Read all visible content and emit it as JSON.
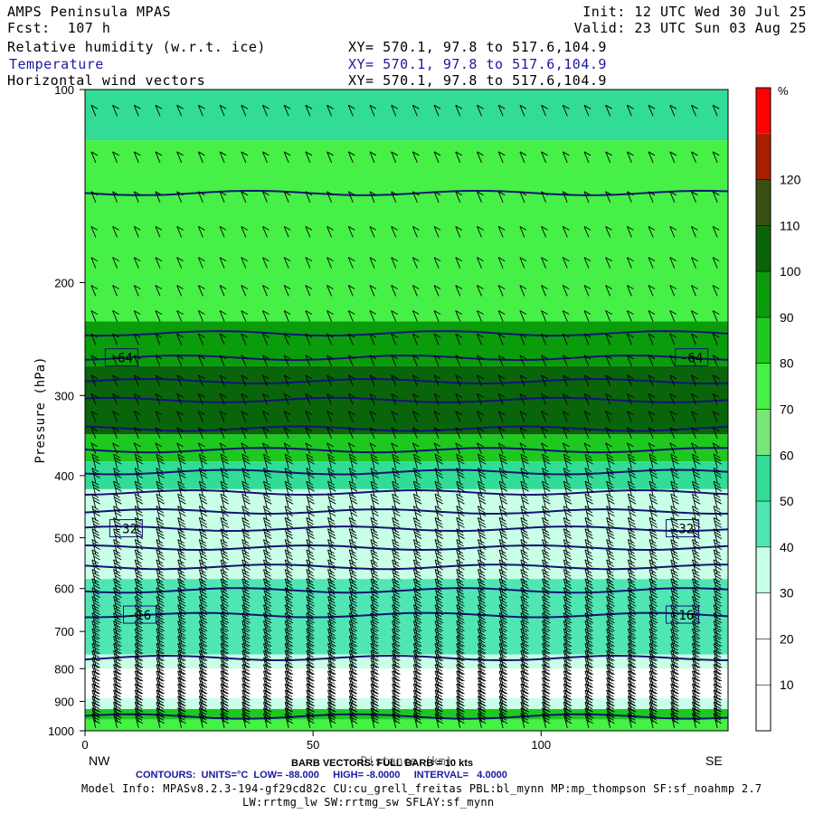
{
  "header": {
    "title": "AMPS Peninsula MPAS",
    "fcst": "Fcst:  107 h",
    "init": "Init: 12 UTC Wed 30 Jul 25",
    "valid": "Valid: 23 UTC Sun 03 Aug 25",
    "fields": [
      {
        "name": "Relative humidity (w.r.t. ice)",
        "xy": "XY= 570.1, 97.8 to 517.6,104.9"
      },
      {
        "name": "Temperature",
        "xy": "XY= 570.1, 97.8 to 517.6,104.9"
      },
      {
        "name": "Horizontal wind vectors",
        "xy": "XY= 570.1, 97.8 to 517.6,104.9"
      }
    ]
  },
  "chart_data": {
    "type": "heatmap",
    "ylabel": "Pressure (hPa)",
    "xlabel": "Distance (km)",
    "x_ticks": [
      0,
      50,
      100
    ],
    "x_range": [
      0,
      141
    ],
    "y_ticks": [
      100,
      200,
      300,
      400,
      500,
      600,
      700,
      800,
      900,
      1000
    ],
    "y_range": [
      100,
      1000
    ],
    "y_scale": "log-pressure",
    "endpoints": {
      "left": "NW",
      "right": "SE"
    },
    "colorbar": {
      "unit": "%",
      "levels": [
        0,
        10,
        20,
        30,
        40,
        50,
        60,
        70,
        80,
        90,
        100,
        110,
        120,
        130
      ],
      "tick_labels": [
        "10",
        "20",
        "30",
        "40",
        "50",
        "60",
        "70",
        "80",
        "90",
        "100",
        "110",
        "120"
      ],
      "colors": [
        "#ffffff",
        "#ffffff",
        "#ffffff",
        "#c8ffe6",
        "#50e6b4",
        "#32dc96",
        "#7ae67a",
        "#46f046",
        "#1ec81e",
        "#0a9c0a",
        "#0a640a",
        "#375014",
        "#aa1e00",
        "#ff0000"
      ]
    },
    "rh_layers": [
      {
        "p_top": 100,
        "p_bottom": 120,
        "rh": 55
      },
      {
        "p_top": 120,
        "p_bottom": 230,
        "rh": 75
      },
      {
        "p_top": 230,
        "p_bottom": 270,
        "rh": 92
      },
      {
        "p_top": 270,
        "p_bottom": 345,
        "rh": 108
      },
      {
        "p_top": 345,
        "p_bottom": 380,
        "rh": 88
      },
      {
        "p_top": 380,
        "p_bottom": 420,
        "rh": 52
      },
      {
        "p_top": 420,
        "p_bottom": 580,
        "rh": 38
      },
      {
        "p_top": 580,
        "p_bottom": 760,
        "rh": 45
      },
      {
        "p_top": 760,
        "p_bottom": 800,
        "rh": 35
      },
      {
        "p_top": 800,
        "p_bottom": 890,
        "rh": 18
      },
      {
        "p_top": 890,
        "p_bottom": 925,
        "rh": 35
      },
      {
        "p_top": 925,
        "p_bottom": 960,
        "rh": 88
      },
      {
        "p_top": 960,
        "p_bottom": 1000,
        "rh": 75
      }
    ],
    "temperature_contours": {
      "units": "°C",
      "low": -88.0,
      "high": -8.0,
      "interval": 4.0,
      "lines": [
        {
          "value": -68,
          "pressure": 145
        },
        {
          "value": -64,
          "pressure": 240
        },
        {
          "value": -64,
          "pressure": 262
        },
        {
          "value": -60,
          "pressure": 285
        },
        {
          "value": -56,
          "pressure": 305
        },
        {
          "value": -52,
          "pressure": 338
        },
        {
          "value": -48,
          "pressure": 365
        },
        {
          "value": -44,
          "pressure": 395
        },
        {
          "value": -40,
          "pressure": 425
        },
        {
          "value": -36,
          "pressure": 455
        },
        {
          "value": -32,
          "pressure": 484
        },
        {
          "value": -28,
          "pressure": 518
        },
        {
          "value": -24,
          "pressure": 555
        },
        {
          "value": -20,
          "pressure": 604
        },
        {
          "value": -16,
          "pressure": 660
        },
        {
          "value": -12,
          "pressure": 770
        },
        {
          "value": -8,
          "pressure": 950
        }
      ],
      "labels": [
        {
          "text": "-64",
          "x": 8,
          "pressure": 262
        },
        {
          "text": "-64",
          "x": 133,
          "pressure": 262
        },
        {
          "text": "-32",
          "x": 9,
          "pressure": 484
        },
        {
          "text": "-32",
          "x": 131,
          "pressure": 484
        },
        {
          "text": "-16",
          "x": 12,
          "pressure": 660
        },
        {
          "text": "-16",
          "x": 131,
          "pressure": 660
        }
      ]
    },
    "wind_barbs": {
      "vectors": "BARB VECTORS: FULL BARB = 10 kts",
      "columns": 30,
      "levels_hpa": [
        110,
        130,
        150,
        170,
        190,
        210,
        230,
        250,
        270,
        290,
        310,
        330,
        350,
        370,
        390,
        410,
        430,
        450,
        470,
        490,
        510,
        530,
        550,
        570,
        590,
        610,
        630,
        650,
        670,
        690,
        710,
        730,
        750,
        770,
        790,
        810,
        830,
        850,
        870,
        890,
        910,
        930,
        950,
        970,
        990
      ]
    }
  },
  "footer": {
    "barb": "BARB VECTORS: FULL BARB = 10 kts",
    "contours": "CONTOURS:  UNITS=°C  LOW= -88.000     HIGH= -8.0000     INTERVAL=   4.0000",
    "model_info": "Model Info: MPASv8.2.3-194-gf29cd82c CU:cu_grell_freitas PBL:bl_mynn MP:mp_thompson SF:sf_noahmp 2.7",
    "model_info2": "LW:rrtmg_lw SW:rrtmg_sw SFLAY:sf_mynn"
  }
}
